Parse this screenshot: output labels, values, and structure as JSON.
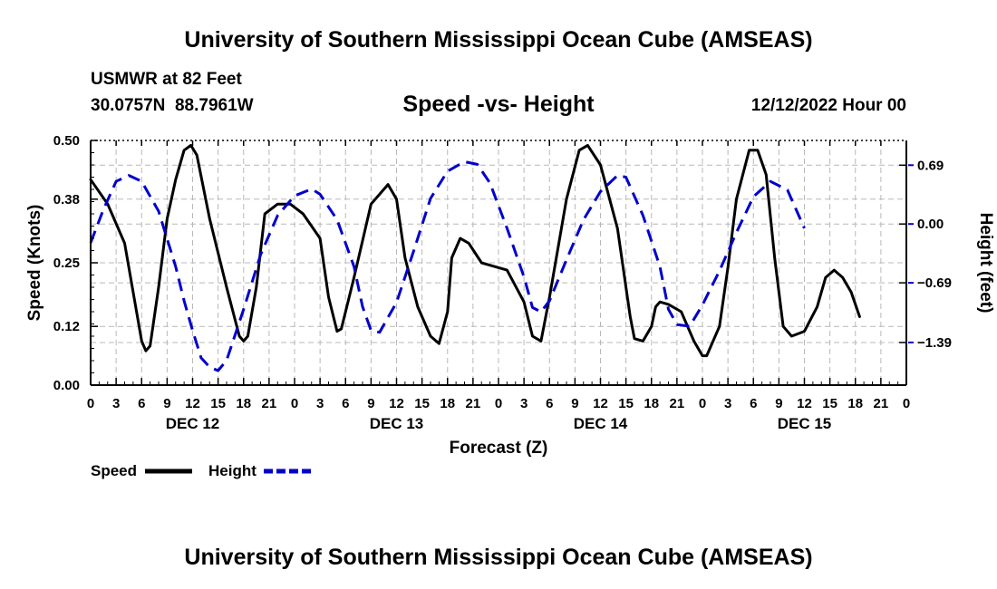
{
  "header": {
    "title": "University of Southern Mississippi Ocean Cube (AMSEAS)",
    "station": "USMWR at 82 Feet",
    "coords": "30.0757N  88.7961W",
    "subtitle": "Speed -vs- Height",
    "datetime": "12/12/2022 Hour 00"
  },
  "footer": {
    "title": "University of Southern Mississippi Ocean Cube (AMSEAS)"
  },
  "chart_data": {
    "type": "line",
    "xlabel": "Forecast (Z)",
    "ylabel": "Speed (Knots)",
    "y2label": "Height (feet)",
    "xlim": [
      0,
      96
    ],
    "ylim": [
      0,
      0.5
    ],
    "y2lim": [
      -1.89,
      0.98
    ],
    "x_ticks": [
      0,
      3,
      6,
      9,
      12,
      15,
      18,
      21,
      24,
      27,
      30,
      33,
      36,
      39,
      42,
      45,
      48,
      51,
      54,
      57,
      60,
      63,
      66,
      69,
      72,
      75,
      78,
      81,
      84,
      87,
      90,
      93,
      96
    ],
    "x_tick_labels": [
      "0",
      "3",
      "6",
      "9",
      "12",
      "15",
      "18",
      "21",
      "0",
      "3",
      "6",
      "9",
      "12",
      "15",
      "18",
      "21",
      "0",
      "3",
      "6",
      "9",
      "12",
      "15",
      "18",
      "21",
      "0",
      "3",
      "6",
      "9",
      "12",
      "15",
      "18",
      "21",
      "0"
    ],
    "date_labels": [
      {
        "x": 12,
        "label": "DEC 12"
      },
      {
        "x": 36,
        "label": "DEC 13"
      },
      {
        "x": 60,
        "label": "DEC 14"
      },
      {
        "x": 84,
        "label": "DEC 15"
      }
    ],
    "y_ticks": [
      0.0,
      0.12,
      0.25,
      0.38,
      0.5
    ],
    "y_tick_labels": [
      "0.00",
      "0.12",
      "0.25",
      "0.38",
      "0.50"
    ],
    "y2_ticks": [
      -1.39,
      -0.69,
      0.0,
      0.69
    ],
    "y2_tick_labels": [
      "−1.39",
      "−0.69",
      "0.00",
      "0.69"
    ],
    "grid": true,
    "series": [
      {
        "name": "Speed",
        "color": "#000000",
        "axis": "left",
        "style": "solid",
        "points": [
          [
            0,
            0.42
          ],
          [
            2,
            0.37
          ],
          [
            4,
            0.29
          ],
          [
            5,
            0.19
          ],
          [
            6,
            0.09
          ],
          [
            6.5,
            0.07
          ],
          [
            7,
            0.08
          ],
          [
            8,
            0.2
          ],
          [
            9,
            0.34
          ],
          [
            10,
            0.42
          ],
          [
            11,
            0.48
          ],
          [
            11.8,
            0.49
          ],
          [
            12.5,
            0.47
          ],
          [
            14,
            0.34
          ],
          [
            16,
            0.2
          ],
          [
            17.5,
            0.1
          ],
          [
            18,
            0.09
          ],
          [
            18.5,
            0.1
          ],
          [
            19.5,
            0.2
          ],
          [
            20.5,
            0.35
          ],
          [
            22,
            0.37
          ],
          [
            23.5,
            0.37
          ],
          [
            25,
            0.35
          ],
          [
            27,
            0.3
          ],
          [
            28,
            0.18
          ],
          [
            29,
            0.11
          ],
          [
            29.5,
            0.115
          ],
          [
            31,
            0.22
          ],
          [
            33,
            0.37
          ],
          [
            35,
            0.41
          ],
          [
            36,
            0.38
          ],
          [
            37,
            0.26
          ],
          [
            38.5,
            0.16
          ],
          [
            40,
            0.1
          ],
          [
            41,
            0.085
          ],
          [
            42,
            0.15
          ],
          [
            42.5,
            0.26
          ],
          [
            43.5,
            0.3
          ],
          [
            44.5,
            0.29
          ],
          [
            46,
            0.25
          ],
          [
            47,
            0.245
          ],
          [
            49,
            0.235
          ],
          [
            51,
            0.17
          ],
          [
            52,
            0.1
          ],
          [
            53,
            0.09
          ],
          [
            54,
            0.18
          ],
          [
            56,
            0.38
          ],
          [
            57.5,
            0.48
          ],
          [
            58.5,
            0.49
          ],
          [
            60,
            0.45
          ],
          [
            62,
            0.32
          ],
          [
            63.5,
            0.14
          ],
          [
            64,
            0.095
          ],
          [
            65,
            0.09
          ],
          [
            66,
            0.12
          ],
          [
            66.5,
            0.16
          ],
          [
            67,
            0.17
          ],
          [
            68,
            0.165
          ],
          [
            69.5,
            0.15
          ],
          [
            71,
            0.09
          ],
          [
            72,
            0.06
          ],
          [
            72.5,
            0.06
          ],
          [
            74,
            0.12
          ],
          [
            75,
            0.24
          ],
          [
            76,
            0.38
          ],
          [
            77.5,
            0.48
          ],
          [
            78.5,
            0.48
          ],
          [
            79.5,
            0.43
          ],
          [
            80.5,
            0.26
          ],
          [
            81.5,
            0.12
          ],
          [
            82.5,
            0.1
          ],
          [
            84,
            0.11
          ],
          [
            85.5,
            0.16
          ],
          [
            86.5,
            0.22
          ],
          [
            87.5,
            0.235
          ],
          [
            88.5,
            0.22
          ],
          [
            89.5,
            0.19
          ],
          [
            90.5,
            0.14
          ]
        ]
      },
      {
        "name": "Height",
        "color": "#0000cc",
        "axis": "right",
        "style": "dashed",
        "points": [
          [
            0,
            -0.22
          ],
          [
            1.5,
            0.17
          ],
          [
            3,
            0.5
          ],
          [
            4.5,
            0.57
          ],
          [
            6,
            0.5
          ],
          [
            8,
            0.15
          ],
          [
            10,
            -0.5
          ],
          [
            11,
            -0.9
          ],
          [
            12,
            -1.25
          ],
          [
            13,
            -1.57
          ],
          [
            14,
            -1.68
          ],
          [
            15,
            -1.72
          ],
          [
            16,
            -1.6
          ],
          [
            18,
            -1.0
          ],
          [
            20,
            -0.36
          ],
          [
            22,
            0.1
          ],
          [
            24,
            0.33
          ],
          [
            26,
            0.41
          ],
          [
            27,
            0.35
          ],
          [
            29,
            0.05
          ],
          [
            31,
            -0.5
          ],
          [
            32,
            -0.97
          ],
          [
            33,
            -1.25
          ],
          [
            34,
            -1.27
          ],
          [
            36,
            -0.92
          ],
          [
            38,
            -0.32
          ],
          [
            40,
            0.3
          ],
          [
            42,
            0.62
          ],
          [
            44,
            0.73
          ],
          [
            45.5,
            0.7
          ],
          [
            47,
            0.48
          ],
          [
            49,
            -0.05
          ],
          [
            51,
            -0.62
          ],
          [
            52,
            -0.98
          ],
          [
            53,
            -1.03
          ],
          [
            54,
            -0.9
          ],
          [
            56,
            -0.42
          ],
          [
            58,
            0.05
          ],
          [
            60,
            0.38
          ],
          [
            62,
            0.57
          ],
          [
            63,
            0.55
          ],
          [
            65,
            0.1
          ],
          [
            67,
            -0.5
          ],
          [
            68,
            -1.0
          ],
          [
            69,
            -1.18
          ],
          [
            70.5,
            -1.2
          ],
          [
            72,
            -0.95
          ],
          [
            74,
            -0.55
          ],
          [
            76,
            -0.1
          ],
          [
            78,
            0.32
          ],
          [
            80,
            0.5
          ],
          [
            82,
            0.4
          ],
          [
            84,
            -0.05
          ]
        ]
      }
    ],
    "legend": [
      {
        "label": "Speed",
        "color": "#000000",
        "style": "solid"
      },
      {
        "label": "Height",
        "color": "#0000cc",
        "style": "dashed"
      }
    ]
  }
}
